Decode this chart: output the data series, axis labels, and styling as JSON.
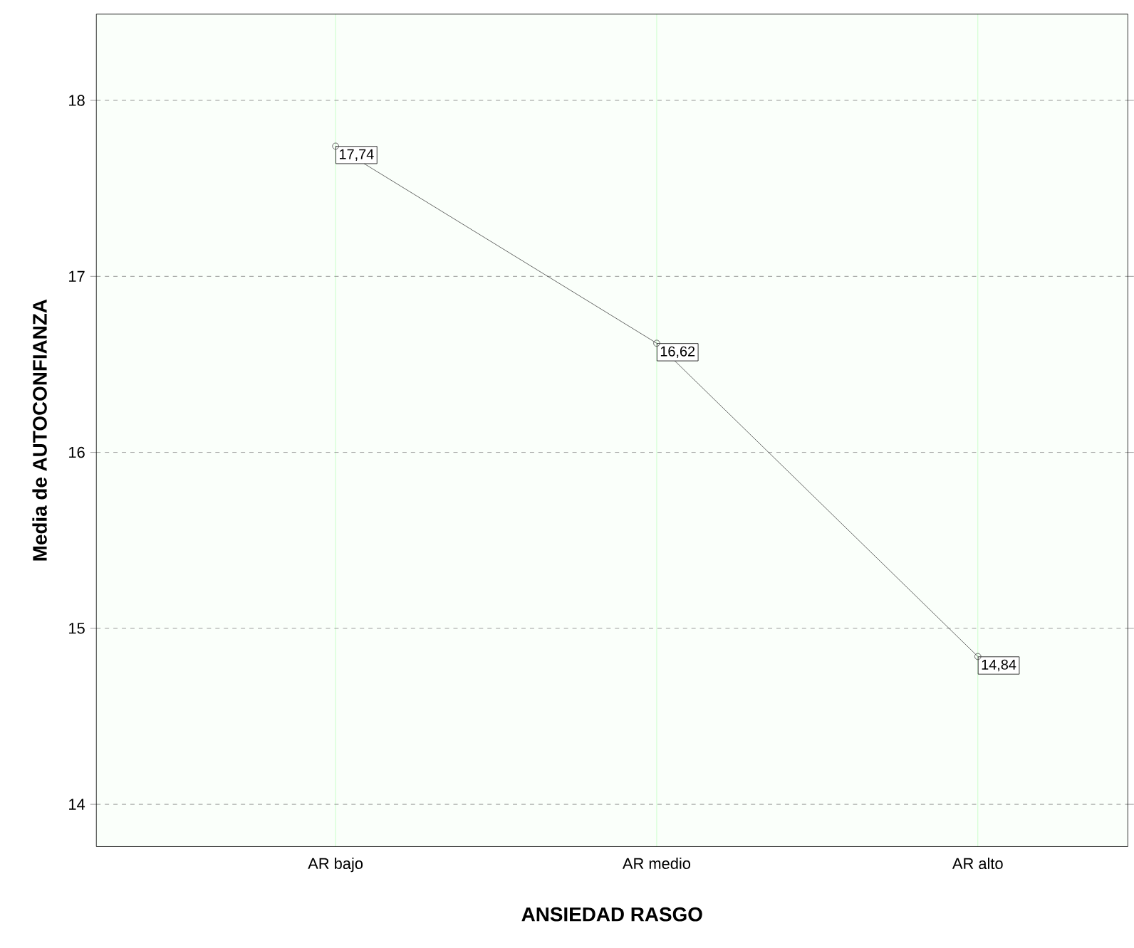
{
  "chart_data": {
    "type": "line",
    "xlabel": "ANSIEDAD RASGO",
    "ylabel": "Media de AUTOCONFIANZA",
    "categories": [
      "AR bajo",
      "AR medio",
      "AR alto"
    ],
    "series": [
      {
        "color": "#404040",
        "values": [
          17.74,
          16.62,
          14.84
        ],
        "value_labels": [
          "17,74",
          "16,62",
          "14,84"
        ]
      }
    ],
    "ylim": [
      13.76,
      18.49
    ],
    "yticks": [
      14,
      15,
      16,
      17,
      18
    ],
    "grid": true,
    "marker": "circle",
    "line_style": "solid"
  }
}
